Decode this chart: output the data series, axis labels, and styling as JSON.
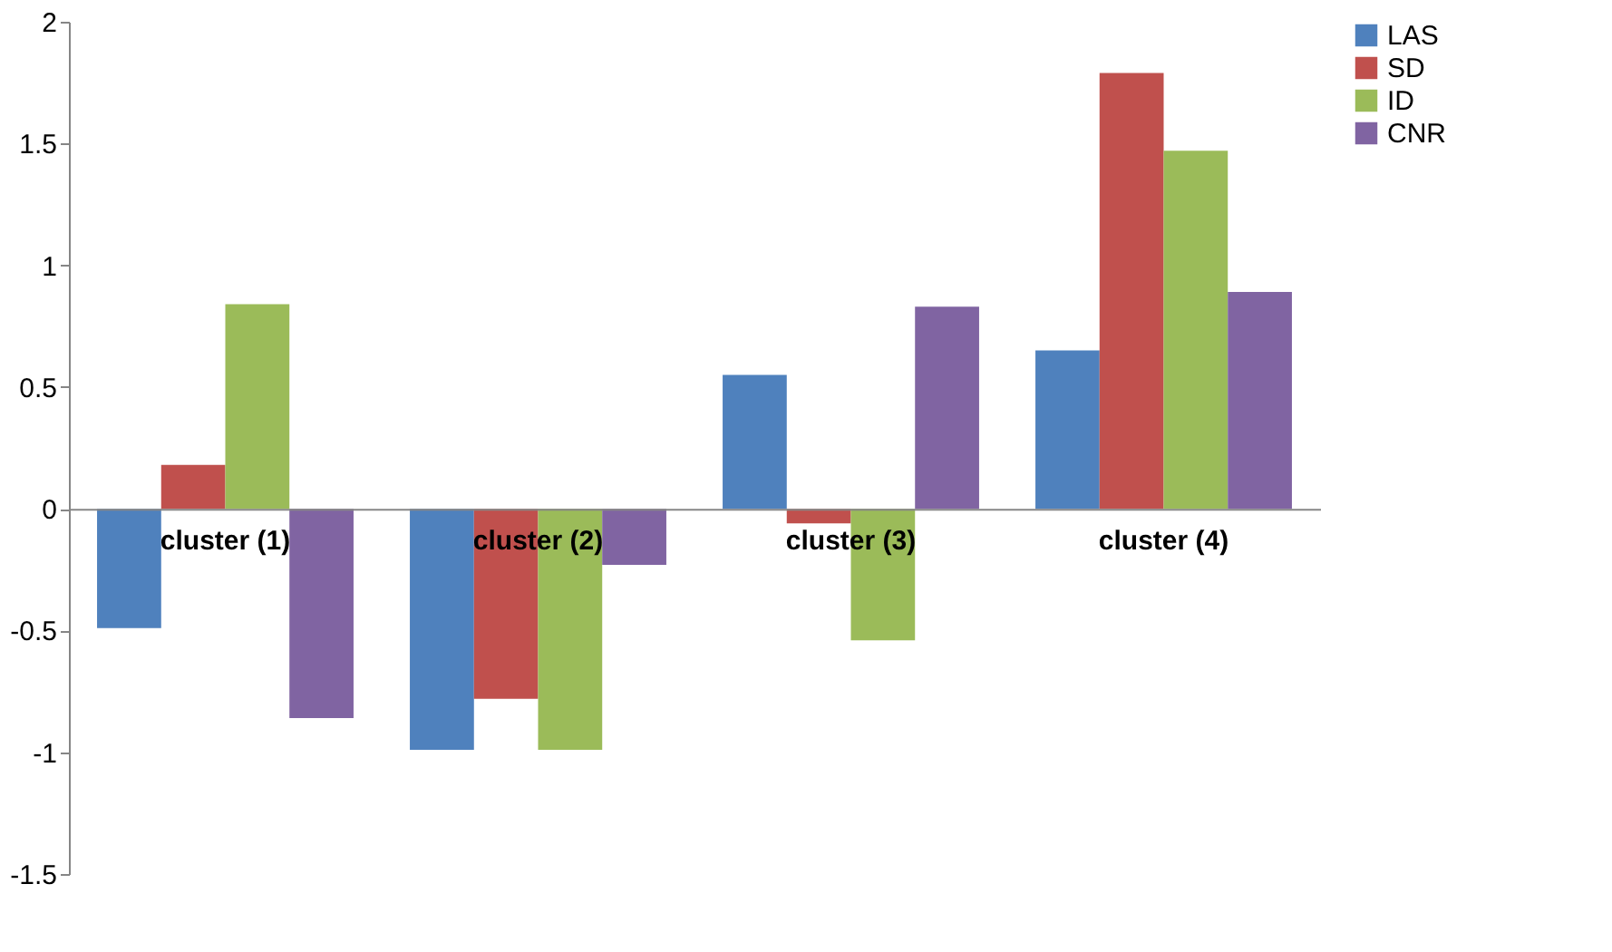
{
  "chart_data": {
    "type": "bar",
    "categories": [
      "cluster (1)",
      "cluster (2)",
      "cluster (3)",
      "cluster (4)"
    ],
    "series": [
      {
        "name": "LAS",
        "color": "#4f81bd",
        "values": [
          -0.49,
          -0.99,
          0.55,
          0.65
        ]
      },
      {
        "name": "SD",
        "color": "#c0504d",
        "values": [
          0.18,
          -0.78,
          -0.06,
          1.79
        ]
      },
      {
        "name": "ID",
        "color": "#9bbb59",
        "values": [
          0.84,
          -0.99,
          -0.54,
          1.47
        ]
      },
      {
        "name": "CNR",
        "color": "#8064a2",
        "values": [
          -0.86,
          -0.23,
          0.83,
          0.89
        ]
      }
    ],
    "ylim": [
      -1.5,
      2
    ],
    "yticks": [
      -1.5,
      -1,
      -0.5,
      0,
      0.5,
      1,
      1.5,
      2
    ],
    "grid": false,
    "legend": "right"
  }
}
